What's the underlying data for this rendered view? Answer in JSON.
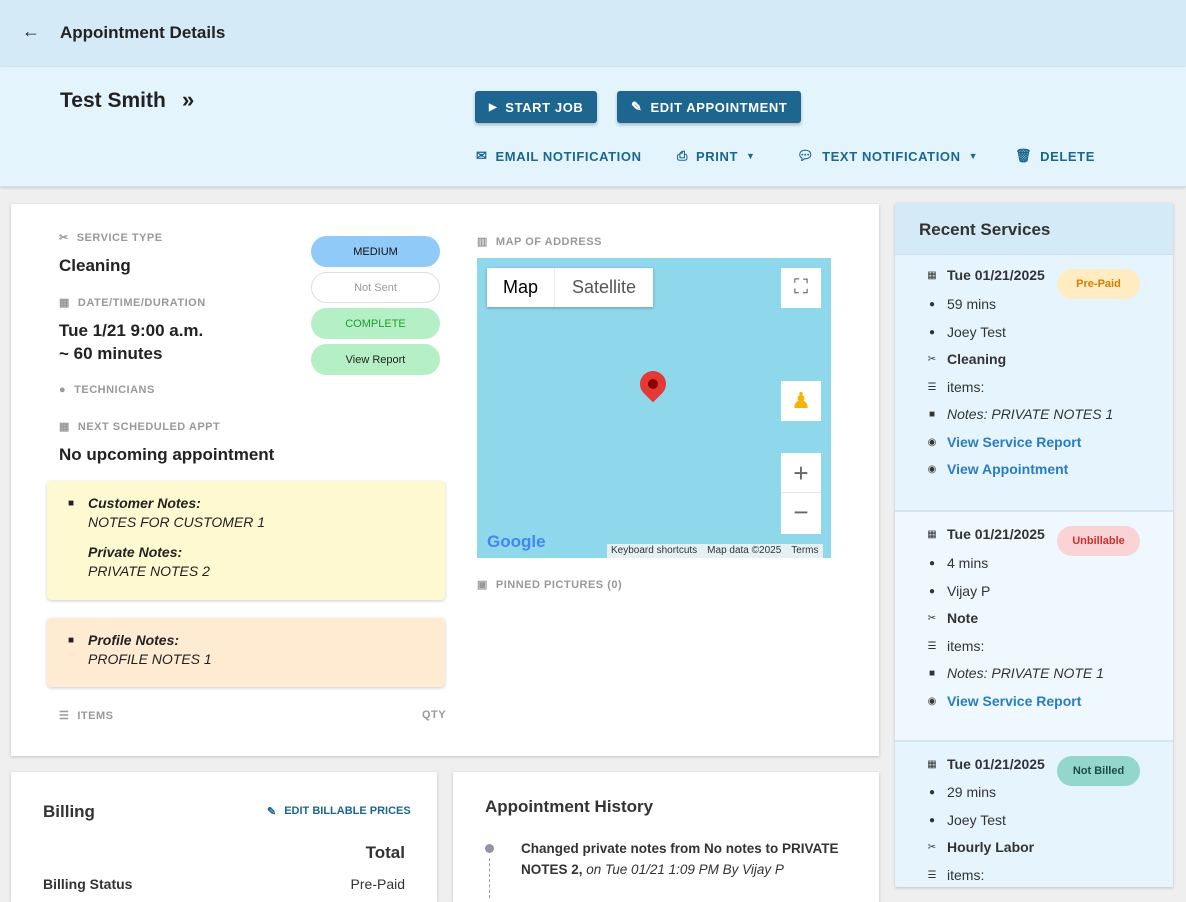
{
  "topbar": {
    "title": "Appointment Details"
  },
  "header": {
    "customer": "Test Smith",
    "start_job": "START JOB",
    "edit_appointment": "EDIT APPOINTMENT",
    "email_notification": "EMAIL NOTIFICATION",
    "print": "PRINT",
    "text_notification": "TEXT NOTIFICATION",
    "delete": "DELETE"
  },
  "details": {
    "service_type_label": "SERVICE TYPE",
    "service_type": "Cleaning",
    "datetime_label": "DATE/TIME/DURATION",
    "datetime": "Tue 1/21 9:00 a.m.",
    "duration": "~ 60 minutes",
    "technicians_label": "TECHNICIANS",
    "next_label": "NEXT SCHEDULED APPT",
    "next": "No upcoming appointment",
    "priority": "MEDIUM",
    "notification_status": "Not Sent",
    "status": "COMPLETE",
    "view_report": "View Report",
    "items_label": "ITEMS",
    "qty_label": "QTY"
  },
  "notes": {
    "customer_label": "Customer Notes:",
    "customer": "NOTES FOR CUSTOMER 1",
    "private_label": "Private Notes:",
    "private": "PRIVATE NOTES 2",
    "profile_label": "Profile Notes:",
    "profile": "PROFILE NOTES 1"
  },
  "map": {
    "label": "MAP OF ADDRESS",
    "tab_map": "Map",
    "tab_satellite": "Satellite",
    "logo": "Google",
    "shortcuts": "Keyboard shortcuts",
    "mapdata": "Map data ©2025",
    "terms": "Terms",
    "pinned_label": "PINNED PICTURES (0)"
  },
  "recent": {
    "title": "Recent Services",
    "items": [
      {
        "date": "Tue 01/21/2025",
        "badge": "Pre-Paid",
        "duration": "59 mins",
        "tech": "Joey Test",
        "service": "Cleaning",
        "items": "items:",
        "notes": "Notes: PRIVATE NOTES 1",
        "link1": "View Service Report",
        "link2": "View Appointment"
      },
      {
        "date": "Tue 01/21/2025",
        "badge": "Unbillable",
        "duration": "4 mins",
        "tech": "Vijay P",
        "service": "Note",
        "items": "items:",
        "notes": "Notes: PRIVATE NOTE 1",
        "link1": "View Service Report"
      },
      {
        "date": "Tue 01/21/2025",
        "badge": "Not Billed",
        "duration": "29 mins",
        "tech": "Joey Test",
        "service": "Hourly Labor",
        "items": "items:"
      }
    ]
  },
  "billing": {
    "title": "Billing",
    "edit": "EDIT BILLABLE PRICES",
    "total_header": "Total",
    "status_label": "Billing Status",
    "status": "Pre-Paid"
  },
  "history": {
    "title": "Appointment History",
    "entry_text": "Changed private notes from No notes to PRIVATE NOTES 2,",
    "entry_meta": "on Tue 01/21 1:09 PM By Vijay P"
  }
}
